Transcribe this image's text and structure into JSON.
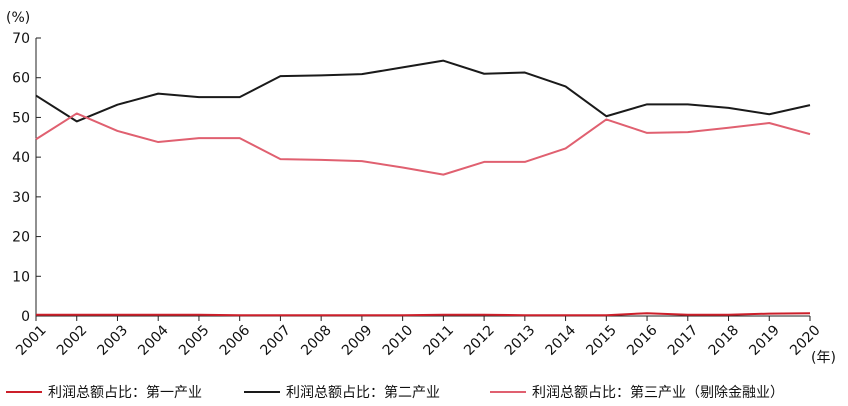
{
  "chart_data": {
    "type": "line",
    "y_unit": "(%)",
    "x_unit": "(年)",
    "categories": [
      "2001",
      "2002",
      "2003",
      "2004",
      "2005",
      "2006",
      "2007",
      "2008",
      "2009",
      "2010",
      "2011",
      "2012",
      "2013",
      "2014",
      "2015",
      "2016",
      "2017",
      "2018",
      "2019",
      "2020"
    ],
    "ylim": [
      0,
      70
    ],
    "yticks": [
      0,
      10,
      20,
      30,
      40,
      50,
      60,
      70
    ],
    "grid": false,
    "legend_position": "bottom",
    "series": [
      {
        "name": "利润总额占比：第一产业",
        "color": "#cc1f2a",
        "values": [
          0.3,
          0.3,
          0.3,
          0.3,
          0.3,
          0.2,
          0.2,
          0.2,
          0.2,
          0.2,
          0.3,
          0.3,
          0.2,
          0.2,
          0.2,
          0.7,
          0.3,
          0.3,
          0.6,
          0.7
        ]
      },
      {
        "name": "利润总额占比：第二产业",
        "color": "#1a1a1a",
        "values": [
          55.5,
          49.0,
          53.2,
          56.0,
          55.1,
          55.1,
          60.4,
          60.6,
          60.9,
          62.6,
          64.3,
          61.0,
          61.3,
          57.8,
          50.3,
          53.3,
          53.3,
          52.4,
          50.8,
          53.1
        ]
      },
      {
        "name": "利润总额占比：第三产业（剔除金融业）",
        "color": "#e06070",
        "values": [
          44.5,
          51.0,
          46.6,
          43.8,
          44.8,
          44.8,
          39.5,
          39.3,
          39.0,
          37.4,
          35.6,
          38.8,
          38.8,
          42.2,
          49.5,
          46.1,
          46.3,
          47.4,
          48.6,
          45.8
        ]
      }
    ]
  }
}
